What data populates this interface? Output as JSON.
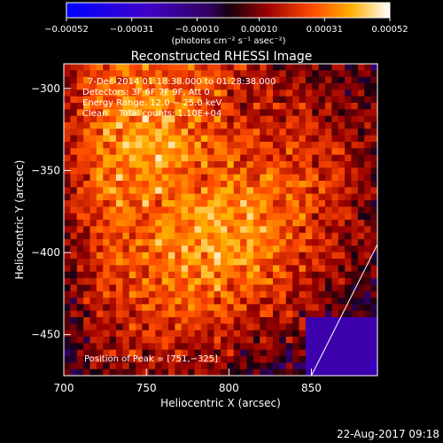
{
  "chart_data": {
    "type": "heatmap",
    "title": "Reconstructed RHESSI Image",
    "xlabel": "Heliocentric X (arcsec)",
    "ylabel": "Heliocentric Y (arcsec)",
    "xlim": [
      700,
      890
    ],
    "ylim": [
      -475,
      -285
    ],
    "x_ticks": [
      700,
      750,
      800,
      850
    ],
    "x_tick_labels": [
      "700",
      "750",
      "800",
      "850"
    ],
    "y_ticks": [
      -300,
      -350,
      -400,
      -450
    ],
    "y_tick_labels": [
      "−300",
      "−350",
      "−400",
      "−450"
    ],
    "colorbar": {
      "range": [
        -0.00052,
        0.00052
      ],
      "ticks": [
        -0.00052,
        -0.00031,
        -0.0001,
        0.0001,
        0.00031,
        0.00052
      ],
      "tick_labels": [
        "−0.00052",
        "−0.00031",
        "−0.00010",
        "0.00010",
        "0.00031",
        "0.00052"
      ],
      "unit_label": "(photons cm⁻² s⁻¹ asec⁻²)"
    },
    "annotations": {
      "time_range": "7-Dec-2014 01:18:38.000 to 01:28:38.000",
      "detectors": "Detectors: 3F 6F 7F 9F, Att 0",
      "energy_range": "Energy Range: 12.0 − 25.0 keV",
      "clean_counts": "Clean    Total counts: 1.10E+04",
      "peak": "Position of Peak = [751,−325]"
    },
    "peak_position": [
      751,
      -325
    ],
    "limb_line": [
      [
        850,
        -475
      ],
      [
        890,
        -395
      ]
    ],
    "colors": {
      "negative_end": "#0000ff",
      "mid": "#1a0050",
      "positive_end": "#ffffff"
    }
  },
  "footer": {
    "timestamp": "22-Aug-2017 09:18"
  }
}
